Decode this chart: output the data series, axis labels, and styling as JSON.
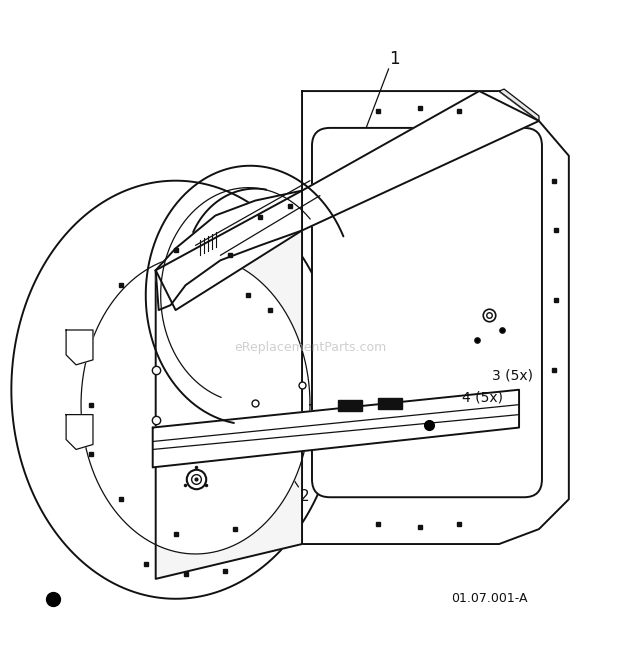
{
  "background_color": "#ffffff",
  "line_color": "#111111",
  "watermark": "eReplacementParts.com",
  "watermark_color": "#bbbbbb",
  "diagram_ref": "01.07.001-A",
  "figsize": [
    6.2,
    6.57
  ],
  "dpi": 100
}
